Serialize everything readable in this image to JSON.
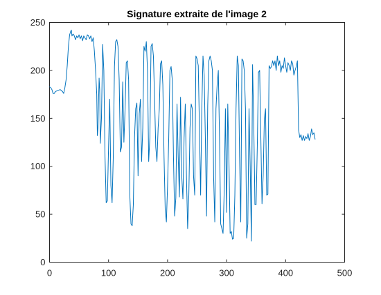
{
  "chart_data": {
    "type": "line",
    "title": "Signature extraite de l'image 2",
    "xlabel": "",
    "ylabel": "",
    "xlim": [
      0,
      500
    ],
    "ylim": [
      0,
      250
    ],
    "x_ticks": [
      0,
      100,
      200,
      300,
      400,
      500
    ],
    "y_ticks": [
      0,
      50,
      100,
      150,
      200,
      250
    ],
    "x_tick_labels": [
      "0",
      "100",
      "200",
      "300",
      "400",
      "500"
    ],
    "y_tick_labels": [
      "0",
      "50",
      "100",
      "150",
      "200",
      "250"
    ],
    "grid": false,
    "line_color": "#0072bd",
    "series": [
      {
        "x": [
          0,
          2,
          4,
          6,
          8,
          10,
          14,
          18,
          22,
          24,
          26,
          28,
          30,
          32,
          34,
          36,
          37,
          38,
          40,
          42,
          44,
          46,
          48,
          50,
          52,
          54,
          56,
          58,
          60,
          62,
          64,
          66,
          68,
          70,
          72,
          74,
          76,
          78,
          80,
          81,
          82,
          84,
          85,
          86,
          88,
          90,
          92,
          94,
          96,
          98,
          100,
          102,
          104,
          106,
          108,
          110,
          112,
          114,
          116,
          118,
          120,
          122,
          124,
          126,
          128,
          130,
          132,
          134,
          136,
          138,
          140,
          142,
          144,
          146,
          148,
          150,
          152,
          154,
          156,
          158,
          160,
          162,
          164,
          166,
          168,
          170,
          172,
          174,
          176,
          178,
          180,
          182,
          184,
          186,
          188,
          190,
          192,
          194,
          196,
          198,
          200,
          202,
          204,
          206,
          208,
          210,
          212,
          214,
          216,
          218,
          220,
          222,
          224,
          226,
          228,
          230,
          232,
          234,
          236,
          238,
          240,
          242,
          244,
          246,
          248,
          250,
          252,
          254,
          256,
          258,
          260,
          262,
          264,
          266,
          268,
          270,
          272,
          274,
          276,
          278,
          280,
          282,
          284,
          286,
          288,
          290,
          292,
          294,
          296,
          298,
          300,
          302,
          304,
          306,
          308,
          310,
          312,
          314,
          316,
          318,
          320,
          322,
          324,
          326,
          328,
          330,
          332,
          334,
          336,
          338,
          340,
          342,
          344,
          346,
          348,
          350,
          352,
          354,
          356,
          358,
          360,
          362,
          364,
          366,
          368,
          370,
          372,
          374,
          376,
          378,
          380,
          382,
          384,
          386,
          388,
          390,
          392,
          394,
          396,
          398,
          400,
          402,
          404,
          406,
          408,
          410,
          412,
          414,
          416,
          418,
          420,
          422,
          424,
          426,
          428,
          430,
          432,
          434,
          436,
          438,
          440,
          442,
          444,
          446,
          448,
          450
        ],
        "y": [
          183,
          182,
          180,
          176,
          176,
          178,
          179,
          180,
          178,
          176,
          182,
          190,
          205,
          225,
          237,
          241,
          242,
          236,
          238,
          236,
          232,
          236,
          234,
          237,
          233,
          236,
          231,
          236,
          234,
          232,
          237,
          236,
          233,
          236,
          230,
          234,
          220,
          200,
          175,
          132,
          140,
          192,
          180,
          124,
          150,
          227,
          200,
          110,
          62,
          64,
          120,
          170,
          80,
          62,
          110,
          204,
          230,
          232,
          225,
          190,
          115,
          120,
          188,
          125,
          160,
          208,
          210,
          190,
          70,
          40,
          38,
          60,
          130,
          160,
          166,
          90,
          155,
          170,
          105,
          140,
          225,
          220,
          230,
          200,
          105,
          130,
          225,
          228,
          215,
          170,
          120,
          105,
          140,
          160,
          207,
          210,
          185,
          110,
          55,
          42,
          80,
          130,
          200,
          204,
          190,
          110,
          48,
          67,
          165,
          110,
          68,
          172,
          90,
          66,
          130,
          165,
          90,
          35,
          70,
          140,
          165,
          160,
          90,
          70,
          215,
          212,
          205,
          140,
          70,
          160,
          215,
          195,
          130,
          48,
          163,
          210,
          215,
          210,
          200,
          90,
          42,
          160,
          185,
          200,
          130,
          40,
          35,
          30,
          75,
          160,
          52,
          165,
          105,
          30,
          32,
          24,
          25,
          70,
          160,
          215,
          205,
          110,
          42,
          212,
          210,
          200,
          160,
          25,
          40,
          160,
          100,
          22,
          206,
          145,
          60,
          60,
          120,
          198,
          200,
          130,
          61,
          90,
          150,
          160,
          70,
          71,
          205,
          202,
          204,
          210,
          205,
          210,
          200,
          215,
          205,
          210,
          198,
          205,
          202,
          213,
          205,
          198,
          208,
          205,
          200,
          210,
          207,
          195,
          200,
          204,
          210,
          138,
          130,
          133,
          127,
          132,
          127,
          131,
          129,
          134,
          127,
          131,
          139,
          133,
          135,
          128
        ]
      }
    ]
  }
}
